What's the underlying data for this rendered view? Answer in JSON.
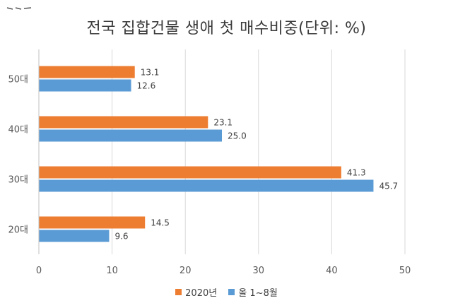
{
  "chart_data": {
    "type": "bar",
    "orientation": "horizontal",
    "title": "전국 집합건물 생애 첫 매수비중(단위: %)",
    "categories": [
      "50대",
      "40대",
      "30대",
      "20대"
    ],
    "series": [
      {
        "name": "2020년",
        "color": "#ED7D31",
        "values": [
          13.1,
          23.1,
          41.3,
          14.5
        ],
        "labels": [
          "13.1",
          "23.1",
          "41.3",
          "14.5"
        ]
      },
      {
        "name": "올 1~8월",
        "color": "#5B9BD5",
        "values": [
          12.6,
          25.0,
          45.7,
          9.6
        ],
        "labels": [
          "12.6",
          "25.0",
          "45.7",
          "9.6"
        ]
      }
    ],
    "xlim": [
      0,
      50
    ],
    "xticks": [
      "0",
      "10",
      "20",
      "30",
      "40",
      "50"
    ],
    "grid": true,
    "legend_position": "bottom"
  }
}
